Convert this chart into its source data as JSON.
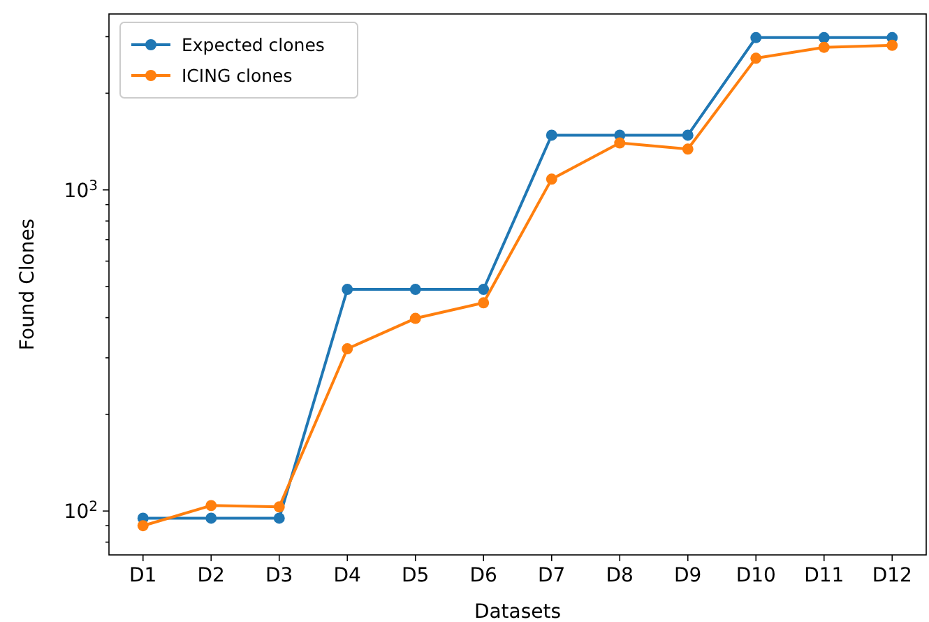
{
  "chart_data": {
    "type": "line",
    "xlabel": "Datasets",
    "ylabel": "Found Clones",
    "categories": [
      "D1",
      "D2",
      "D3",
      "D4",
      "D5",
      "D6",
      "D7",
      "D8",
      "D9",
      "D10",
      "D11",
      "D12"
    ],
    "series": [
      {
        "name": "Expected clones",
        "color": "#1f77b4",
        "values": [
          95,
          95,
          95,
          490,
          490,
          490,
          1480,
          1480,
          1480,
          2980,
          2980,
          2980
        ]
      },
      {
        "name": "ICING clones",
        "color": "#ff7f0e",
        "values": [
          90,
          104,
          103,
          320,
          398,
          445,
          1080,
          1400,
          1340,
          2570,
          2780,
          2820
        ]
      }
    ],
    "log": true,
    "ylim": [
      73,
      3530
    ],
    "yticks": [
      {
        "value": 80,
        "label": null
      },
      {
        "value": 90,
        "label": null
      },
      {
        "value": 100,
        "label": "10$^{2}$"
      },
      {
        "value": 200,
        "label": null
      },
      {
        "value": 300,
        "label": null
      },
      {
        "value": 400,
        "label": null
      },
      {
        "value": 500,
        "label": null
      },
      {
        "value": 600,
        "label": null
      },
      {
        "value": 700,
        "label": null
      },
      {
        "value": 800,
        "label": null
      },
      {
        "value": 900,
        "label": null
      },
      {
        "value": 1000,
        "label": "10$^{3}$"
      },
      {
        "value": 2000,
        "label": null
      },
      {
        "value": 3000,
        "label": null
      }
    ],
    "legend": "top left",
    "marker": "circle",
    "line_style": "solid"
  }
}
